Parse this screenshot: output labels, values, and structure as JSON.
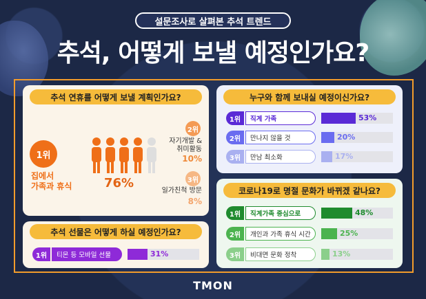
{
  "header": {
    "subtitle": "설문조사로 살펴본 추석 트렌드",
    "title": "추석, 어떻게 보낼 예정인가요?"
  },
  "plan_card": {
    "question": "추석 연휴를 어떻게 보낼 계획인가요?",
    "rank1": {
      "rank": "1위",
      "label_line1": "집에서",
      "label_line2": "가족과 휴식",
      "percent": "76%"
    },
    "rank2": {
      "rank": "2위",
      "label_line1": "자기개발 &",
      "label_line2": "취미활동",
      "percent": "10%"
    },
    "rank3": {
      "rank": "3위",
      "label": "일가친척 방문",
      "percent": "8%"
    },
    "people_filled": 4,
    "people_total": 5
  },
  "gift_card": {
    "question": "추석 선물은 어떻게 하실 예정인가요?",
    "rows": [
      {
        "rank": "1위",
        "label": "티몬 등 모바일 선물",
        "percent": "31%",
        "value": 31
      }
    ]
  },
  "with_card": {
    "question": "누구와 함께 보내실 예정이신가요?",
    "rows": [
      {
        "rank": "1위",
        "label": "직계 가족",
        "percent": "53%",
        "value": 53
      },
      {
        "rank": "2위",
        "label": "만나지 않을 것",
        "percent": "20%",
        "value": 20
      },
      {
        "rank": "3위",
        "label": "만남 최소화",
        "percent": "17%",
        "value": 17
      }
    ]
  },
  "corona_card": {
    "question": "코로나19로 명절 문화가 바뀌겠 같나요?",
    "rows": [
      {
        "rank": "1위",
        "label": "직계가족 중심으로",
        "percent": "48%",
        "value": 48
      },
      {
        "rank": "2위",
        "label": "개인과 가족 휴식 시간",
        "percent": "25%",
        "value": 25
      },
      {
        "rank": "3위",
        "label": "비대면 문화 정착",
        "percent": "13%",
        "value": 13
      }
    ]
  },
  "footer": {
    "logo": "TMON"
  },
  "colors": {
    "accent_orange": "#ef6f18",
    "gift_purple": "#8e2ad8",
    "with_blue": [
      "#5a2ad6",
      "#6a6cf0",
      "#a9b0f0"
    ],
    "corona_green": [
      "#1f8b2e",
      "#4cb34f",
      "#8bcf8b"
    ]
  }
}
